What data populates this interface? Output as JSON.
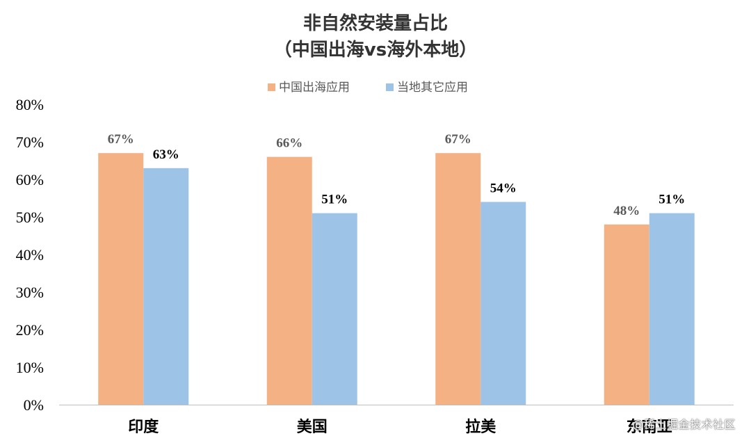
{
  "chart_data": {
    "type": "bar",
    "title": "非自然安装量占比",
    "subtitle": "（中国出海vs海外本地）",
    "categories": [
      "印度",
      "美国",
      "拉美",
      "东南亚"
    ],
    "series": [
      {
        "name": "中国出海应用",
        "values": [
          67,
          66,
          67,
          48
        ],
        "labels": [
          "67%",
          "66%",
          "67%",
          "48%"
        ],
        "color": "#F4B183",
        "label_color": "#595959"
      },
      {
        "name": "当地其它应用",
        "values": [
          63,
          51,
          54,
          51
        ],
        "labels": [
          "63%",
          "51%",
          "54%",
          "51%"
        ],
        "color": "#9DC3E6",
        "label_color": "#000000"
      }
    ],
    "ylim": [
      0,
      80
    ],
    "yticks": [
      "0%",
      "10%",
      "20%",
      "30%",
      "40%",
      "50%",
      "60%",
      "70%",
      "80%"
    ],
    "grid": false,
    "legend_position": "top"
  },
  "watermark": "@稀土掘金技术社区"
}
